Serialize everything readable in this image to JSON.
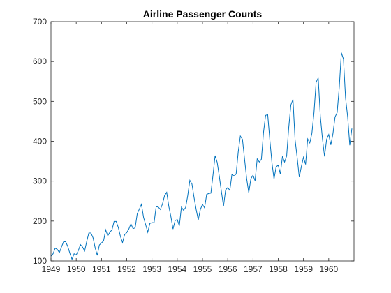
{
  "chart_data": {
    "type": "line",
    "title": "Airline Passenger Counts",
    "xlabel": "",
    "ylabel": "",
    "xlim": [
      1949,
      1961
    ],
    "ylim": [
      100,
      700
    ],
    "xticks": [
      1949,
      1950,
      1951,
      1952,
      1953,
      1954,
      1955,
      1956,
      1957,
      1958,
      1959,
      1960
    ],
    "yticks": [
      100,
      200,
      300,
      400,
      500,
      600,
      700
    ],
    "grid": false,
    "line_color": "#0072bd",
    "x_start": 1949.0,
    "x_step": 0.08333,
    "values": [
      112,
      118,
      132,
      129,
      121,
      135,
      148,
      148,
      136,
      119,
      104,
      118,
      115,
      126,
      141,
      135,
      125,
      149,
      170,
      170,
      158,
      133,
      114,
      140,
      145,
      150,
      178,
      163,
      172,
      178,
      199,
      199,
      184,
      162,
      146,
      166,
      171,
      180,
      193,
      181,
      183,
      218,
      230,
      242,
      209,
      191,
      172,
      194,
      196,
      196,
      236,
      235,
      229,
      243,
      264,
      272,
      237,
      211,
      180,
      201,
      204,
      188,
      235,
      227,
      234,
      264,
      302,
      293,
      259,
      229,
      203,
      229,
      242,
      233,
      267,
      269,
      270,
      315,
      364,
      347,
      312,
      274,
      237,
      278,
      284,
      277,
      317,
      313,
      318,
      374,
      413,
      405,
      355,
      306,
      271,
      306,
      315,
      301,
      356,
      348,
      355,
      422,
      465,
      467,
      404,
      347,
      305,
      336,
      340,
      318,
      362,
      348,
      363,
      435,
      491,
      505,
      404,
      359,
      310,
      337,
      360,
      342,
      406,
      396,
      420,
      472,
      548,
      559,
      463,
      407,
      362,
      405,
      417,
      391,
      419,
      461,
      472,
      535,
      622,
      606,
      508,
      461,
      390,
      432
    ]
  }
}
